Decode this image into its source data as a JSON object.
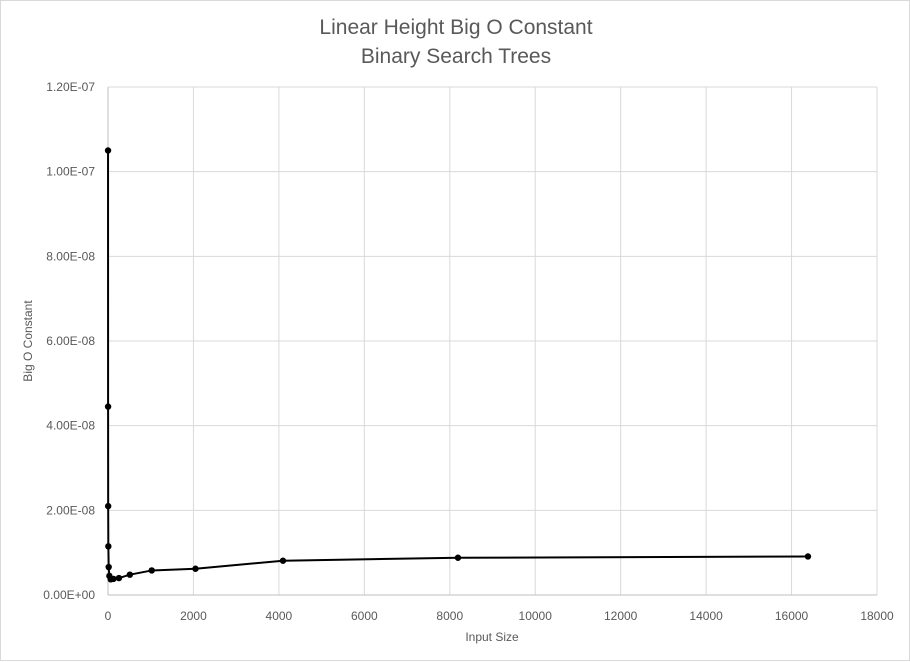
{
  "chart_data": {
    "type": "scatter",
    "title": [
      "Linear Height Big O Constant",
      "Binary Search Trees"
    ],
    "xlabel": "Input Size",
    "ylabel": "Big O Constant",
    "xlim": [
      0,
      18000
    ],
    "ylim": [
      0,
      1.2e-07
    ],
    "x_ticks": [
      0,
      2000,
      4000,
      6000,
      8000,
      10000,
      12000,
      14000,
      16000,
      18000
    ],
    "x_tick_labels": [
      "0",
      "2000",
      "4000",
      "6000",
      "8000",
      "10000",
      "12000",
      "14000",
      "16000",
      "18000"
    ],
    "y_ticks": [
      0,
      2e-08,
      4e-08,
      6e-08,
      8e-08,
      1e-07,
      1.2e-07
    ],
    "y_tick_labels": [
      "0.00E+00",
      "2.00E-08",
      "4.00E-08",
      "6.00E-08",
      "8.00E-08",
      "1.00E-07",
      "1.20E-07"
    ],
    "grid": true,
    "legend": "none",
    "series": [
      {
        "color": "#000000",
        "markers": true,
        "lines": true,
        "x": [
          1,
          2,
          4,
          8,
          16,
          32,
          64,
          128,
          256,
          512,
          1024,
          2048,
          4096,
          8192,
          16384
        ],
        "y": [
          1.05e-07,
          4.45e-08,
          2.1e-08,
          1.15e-08,
          6.6e-09,
          4.5e-09,
          3.7e-09,
          3.8e-09,
          4e-09,
          4.8e-09,
          5.8e-09,
          6.2e-09,
          8.1e-09,
          8.8e-09,
          9.1e-09
        ]
      }
    ]
  }
}
